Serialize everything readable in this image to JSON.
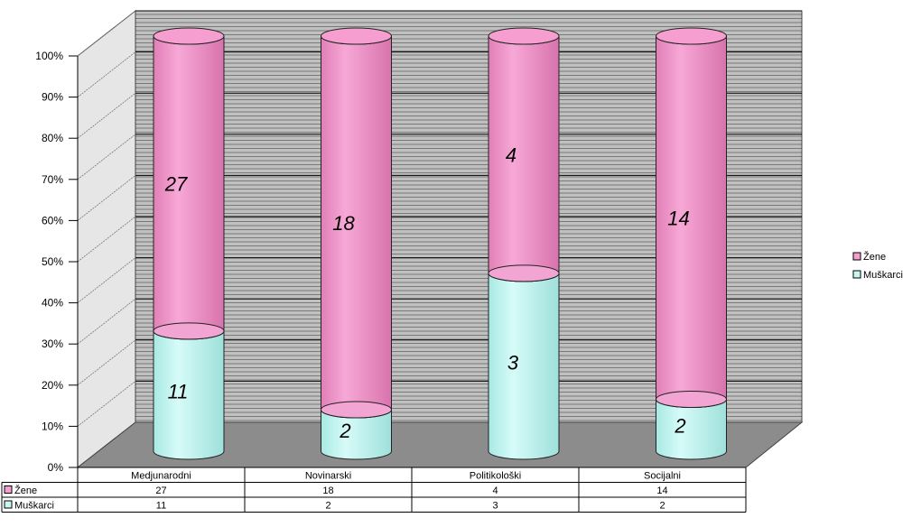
{
  "chart_data": {
    "type": "bar",
    "stacked": "percent",
    "shape": "cylinder-3d",
    "categories": [
      "Medjunarodni",
      "Novinarski",
      "Politikološki",
      "Socijalni"
    ],
    "series": [
      {
        "name": "Žene",
        "values": [
          27,
          18,
          4,
          14
        ],
        "color": "#f59ecf"
      },
      {
        "name": "Muškarci",
        "values": [
          11,
          2,
          3,
          2
        ],
        "color": "#c8f7f3"
      }
    ],
    "ylim": [
      0,
      100
    ],
    "yticks": [
      "0%",
      "10%",
      "20%",
      "30%",
      "40%",
      "50%",
      "60%",
      "70%",
      "80%",
      "90%",
      "100%"
    ],
    "grid": true,
    "legend": "right",
    "data_table": true,
    "colors": {
      "wall": "#c0c0c0",
      "floor": "#8c8c8c",
      "grid": "#333333",
      "side_wall": "#e6e6e6"
    }
  }
}
